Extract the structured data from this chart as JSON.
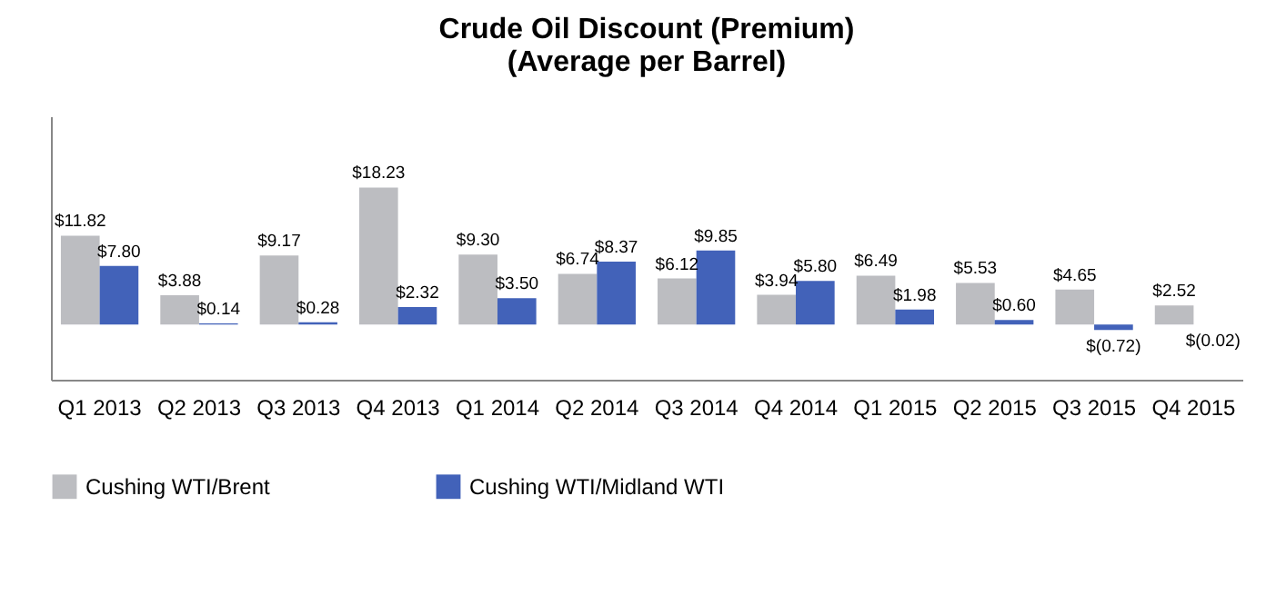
{
  "chart_data": {
    "type": "bar",
    "title": "Crude Oil Discount (Premium)\n(Average per Barrel)",
    "categories": [
      "Q1 2013",
      "Q2 2013",
      "Q3 2013",
      "Q4 2013",
      "Q1 2014",
      "Q2 2014",
      "Q3 2014",
      "Q4 2014",
      "Q1 2015",
      "Q2 2015",
      "Q3 2015",
      "Q4 2015"
    ],
    "series": [
      {
        "name": "Cushing WTI/Brent",
        "color": "#bcbdc1",
        "values": [
          11.82,
          3.88,
          9.17,
          18.23,
          9.3,
          6.74,
          6.12,
          3.94,
          6.49,
          5.53,
          4.65,
          2.52
        ],
        "value_labels": [
          "$11.82",
          "$3.88",
          "$9.17",
          "$18.23",
          "$9.30",
          "$6.74",
          "$6.12",
          "$3.94",
          "$6.49",
          "$5.53",
          "$4.65",
          "$2.52"
        ]
      },
      {
        "name": "Cushing WTI/Midland WTI",
        "color": "#4262b9",
        "values": [
          7.8,
          0.14,
          0.28,
          2.32,
          3.5,
          8.37,
          9.85,
          5.8,
          1.98,
          0.6,
          -0.72,
          -0.02
        ],
        "value_labels": [
          "$7.80",
          "$0.14",
          "$0.28",
          "$2.32",
          "$3.50",
          "$8.37",
          "$9.85",
          "$5.80",
          "$1.98",
          "$0.60",
          "$(0.72)",
          "$(0.02)"
        ]
      }
    ],
    "legend": "bottom",
    "grid": false,
    "tick_labels": "x"
  }
}
